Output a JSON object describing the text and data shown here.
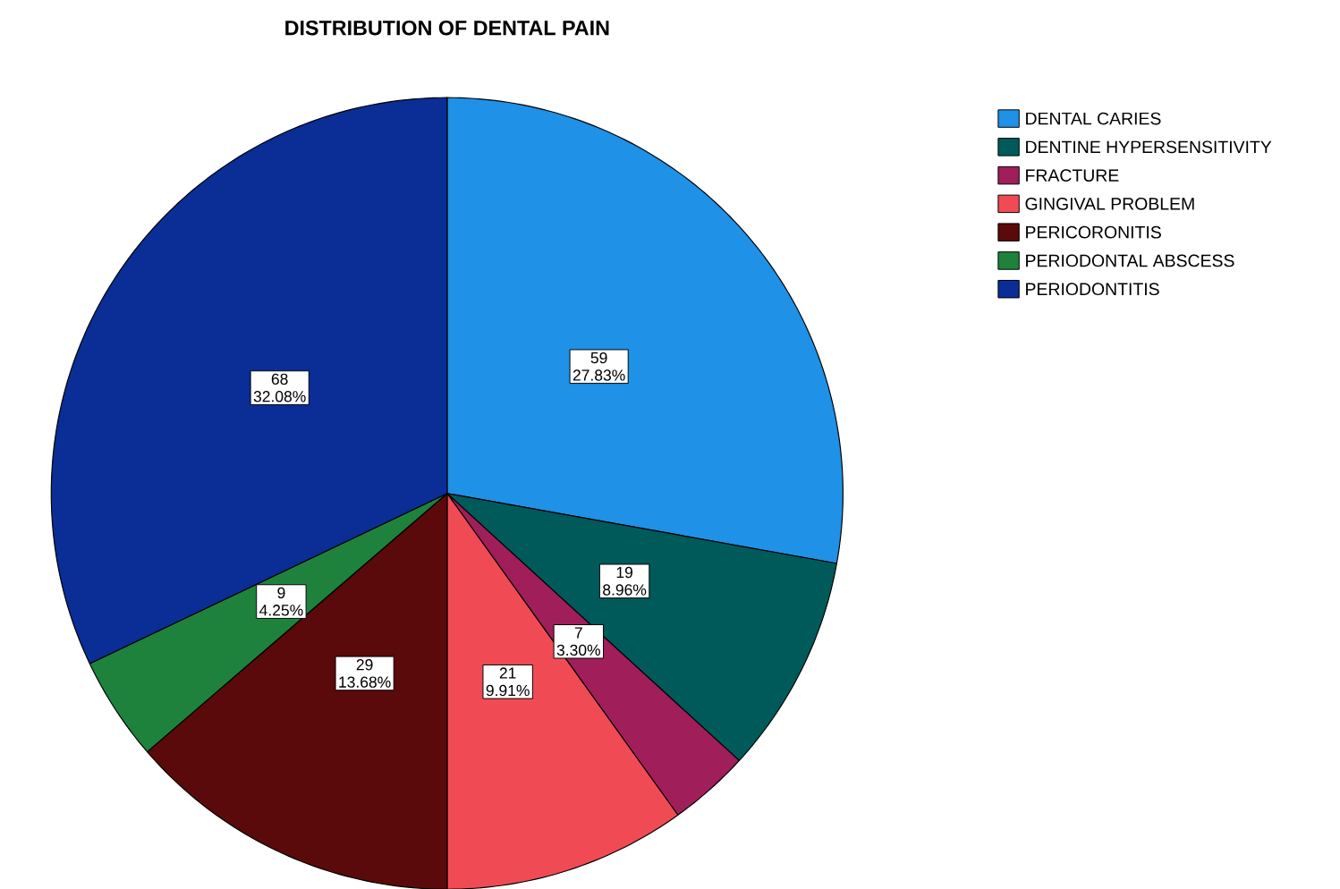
{
  "chart_data": {
    "type": "pie",
    "title": "DISTRIBUTION OF DENTAL PAIN",
    "categories": [
      "DENTAL CARIES",
      "DENTINE HYPERSENSITIVITY",
      "FRACTURE",
      "GINGIVAL PROBLEM",
      "PERICORONITIS",
      "PERIODONTAL ABSCESS",
      "PERIODONTITIS"
    ],
    "values": [
      59,
      19,
      7,
      21,
      29,
      9,
      68
    ],
    "colors": [
      "#1f91e6",
      "#005a5a",
      "#a01e5a",
      "#f04b55",
      "#5a0a0a",
      "#1e823c",
      "#0a2d96"
    ],
    "value_labels": [
      "59",
      "19",
      "7",
      "21",
      "29",
      "9",
      "68"
    ],
    "annotations": [
      {
        "text": "27.83%",
        "x": "DENTAL CARIES"
      },
      {
        "text": "8.96%",
        "x": "DENTINE HYPERSENSITIVITY"
      },
      {
        "text": "3.30%",
        "x": "FRACTURE"
      },
      {
        "text": "9.91%",
        "x": "GINGIVAL PROBLEM"
      },
      {
        "text": "13.68%",
        "x": "PERICORONITIS"
      },
      {
        "text": "4.25%",
        "x": "PERIODONTAL ABSCESS"
      },
      {
        "text": "32.08%",
        "x": "PERIODONTITIS"
      }
    ],
    "legend": "top right"
  }
}
